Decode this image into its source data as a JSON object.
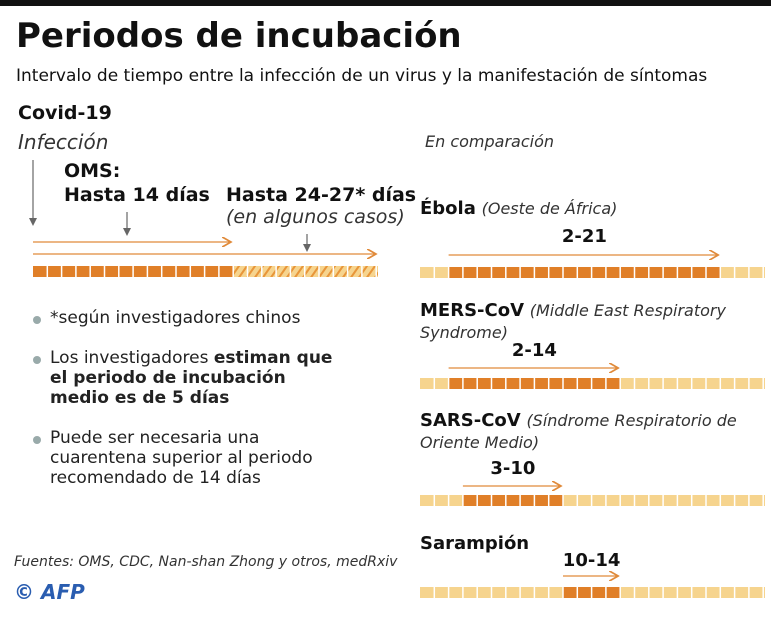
{
  "header": {
    "title": "Periodos de incubación",
    "subtitle": "Intervalo de tiempo entre la infección de un virus y la manifestación de síntomas"
  },
  "covid": {
    "title": "Covid-19",
    "infection": "Infección",
    "oms_label": "OMS:",
    "oms_days": "Hasta 14 días",
    "extended": "Hasta 24-27* días",
    "extended_note": "(en algunos casos)"
  },
  "notes": [
    [
      {
        "text": "*según investigadores chinos",
        "bold": false
      }
    ],
    [
      {
        "text": "Los investigadores ",
        "bold": false
      },
      {
        "text": "estiman que el periodo de incubación medio es de 5 días",
        "bold": true
      }
    ],
    [
      {
        "text": "Puede ser necesaria una cuarentena superior al periodo recomendado de 14 días",
        "bold": false
      }
    ]
  ],
  "comparison": {
    "heading": "En comparación",
    "items": [
      {
        "name": "Ébola",
        "detail": "(Oeste de África)",
        "range_label": "2-21",
        "start": 2,
        "end": 21
      },
      {
        "name": "MERS-CoV",
        "detail": "(Middle East Respiratory Syndrome)",
        "range_label": "2-14",
        "start": 2,
        "end": 14
      },
      {
        "name": "SARS-CoV",
        "detail": "(Síndrome Respiratorio de Oriente Medio)",
        "range_label": "3-10",
        "start": 3,
        "end": 10
      },
      {
        "name": "Sarampión",
        "detail": null,
        "range_label": "10-14",
        "start": 10,
        "end": 14
      }
    ]
  },
  "footer": {
    "sources": "Fuentes: OMS, CDC, Nan-shan Zhong y otros, medRxiv",
    "credit": "© AFP"
  }
}
